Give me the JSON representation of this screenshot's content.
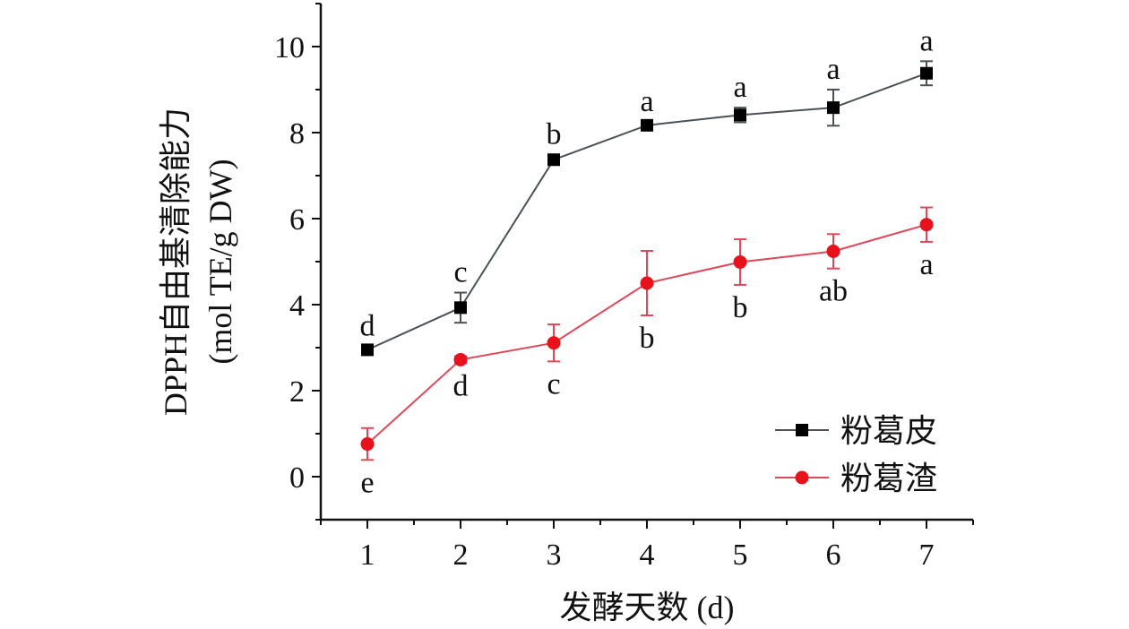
{
  "chart_data": {
    "type": "line",
    "x": [
      1,
      2,
      3,
      4,
      5,
      6,
      7
    ],
    "xlabel": "发酵天数 (d)",
    "ylabel_line1": "DPPH自由基清除能力",
    "ylabel_line2": "(mol TE/g DW)",
    "xlim": [
      0.5,
      7.5
    ],
    "ylim": [
      -1,
      11
    ],
    "xticks": [
      1,
      2,
      3,
      4,
      5,
      6,
      7
    ],
    "yticks": [
      0,
      2,
      4,
      6,
      8,
      10
    ],
    "grid": false,
    "legend_position": "bottom-right",
    "series": [
      {
        "name": "粉葛皮",
        "color": "#4a5256",
        "marker_color": "#000000",
        "marker": "square",
        "values": [
          2.95,
          3.93,
          7.37,
          8.17,
          8.41,
          8.58,
          9.38
        ],
        "errors": [
          0.08,
          0.35,
          0.12,
          0.08,
          0.17,
          0.42,
          0.28
        ],
        "sig_labels": [
          "d",
          "c",
          "b",
          "a",
          "a",
          "a",
          "a"
        ],
        "sig_position": "above"
      },
      {
        "name": "粉葛渣",
        "color": "#e0485a",
        "marker_color": "#e8121c",
        "marker": "circle",
        "values": [
          0.76,
          2.72,
          3.11,
          4.5,
          4.99,
          5.24,
          5.86
        ],
        "errors": [
          0.37,
          0.08,
          0.43,
          0.75,
          0.53,
          0.4,
          0.4
        ],
        "sig_labels": [
          "e",
          "d",
          "c",
          "b",
          "b",
          "ab",
          "a"
        ],
        "sig_position": "below"
      }
    ]
  }
}
